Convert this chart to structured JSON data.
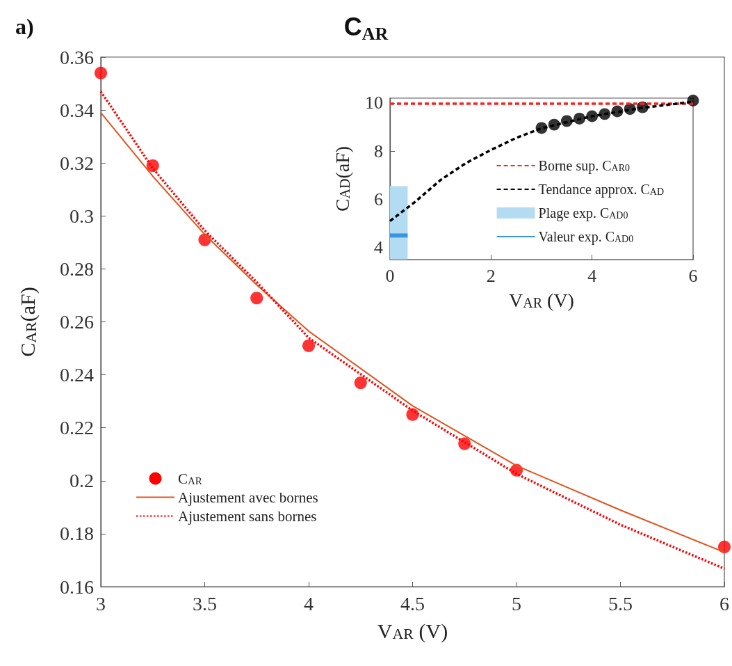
{
  "chart_data": [
    {
      "type": "line",
      "title": "C$_{AR}$",
      "xlabel": "V$_{AR}$ (V)",
      "ylabel": "C$_{AR}$(aF)",
      "annotations": [
        "a)"
      ],
      "xlim": [
        3,
        6
      ],
      "xticks": [
        3,
        3.5,
        4,
        4.5,
        5,
        5.5,
        6
      ],
      "ylim": [
        0.16,
        0.36
      ],
      "yticks": [
        0.16,
        0.18,
        0.2,
        0.22,
        0.24,
        0.26,
        0.28,
        0.3,
        0.32,
        0.34,
        0.36
      ],
      "grid": false,
      "legend": "bottom left",
      "series": [
        {
          "name": "C$_{AR}$",
          "type": "scatter",
          "marker": "circle",
          "color": "#ff0000",
          "x": [
            3,
            3.25,
            3.5,
            3.75,
            4,
            4.25,
            4.5,
            4.75,
            5,
            6
          ],
          "values": [
            0.354,
            0.319,
            0.291,
            0.269,
            0.251,
            0.237,
            0.225,
            0.214,
            0.204,
            0.175
          ]
        },
        {
          "name": "Ajustement avec bornes",
          "type": "line",
          "line_style": "solid",
          "color": "#e0541e",
          "x": [
            3,
            3.25,
            3.5,
            3.75,
            4,
            4.5,
            5,
            5.5,
            6
          ],
          "values": [
            0.339,
            0.315,
            0.293,
            0.274,
            0.2565,
            0.2283,
            0.2057,
            0.1889,
            0.173
          ]
        },
        {
          "name": "Ajustement sans bornes",
          "type": "line",
          "line_style": "dotted",
          "color": "#ff0000",
          "x": [
            3,
            3.25,
            3.5,
            3.75,
            4,
            4.5,
            5,
            5.5,
            6
          ],
          "values": [
            0.347,
            0.318,
            0.2945,
            0.275,
            0.254,
            0.2265,
            0.2026,
            0.1834,
            0.1668
          ]
        }
      ]
    },
    {
      "type": "line",
      "xlabel": "V$_{AR}$ (V)",
      "ylabel": "C$_{AD}$(aF)",
      "xlim": [
        0,
        6
      ],
      "xticks": [
        0,
        2,
        4,
        6
      ],
      "ylim": [
        3.5,
        10.2
      ],
      "yticks": [
        4,
        6,
        8,
        10
      ],
      "grid": false,
      "legend": "right",
      "series": [
        {
          "name": "Plage exp. C$_{AD0}$",
          "type": "area",
          "color": "#b3dcf2",
          "x": [
            0,
            0.35
          ],
          "values": [
            6.55,
            6.55
          ]
        },
        {
          "name": "Valeur exp. C$_{AD0}$",
          "type": "line",
          "line_style": "solid",
          "color": "#3a96e0",
          "x": [
            0,
            0.35
          ],
          "values": [
            4.5,
            4.5
          ]
        },
        {
          "name": "Borne sup. C$_{AR0}$",
          "type": "line",
          "line_style": "dashed",
          "color": "#ff2020",
          "x": [
            0,
            6
          ],
          "values": [
            9.97,
            9.97
          ]
        },
        {
          "name": "Tendance approx. C$_{AD}$",
          "type": "line",
          "line_style": "dashed",
          "color": "#000000",
          "x": [
            0,
            0.5,
            1,
            1.5,
            2,
            2.5,
            3,
            4,
            5,
            6
          ],
          "values": [
            5.1,
            5.9,
            6.8,
            7.5,
            8.05,
            8.55,
            8.95,
            9.45,
            9.8,
            10.05
          ]
        },
        {
          "type": "scatter",
          "marker": "circle",
          "color": "#000000",
          "x": [
            3,
            3.25,
            3.5,
            3.75,
            4,
            4.25,
            4.5,
            4.75,
            5,
            6
          ],
          "values": [
            8.96,
            9.1,
            9.25,
            9.35,
            9.45,
            9.54,
            9.65,
            9.75,
            9.82,
            10.1
          ]
        }
      ]
    }
  ]
}
